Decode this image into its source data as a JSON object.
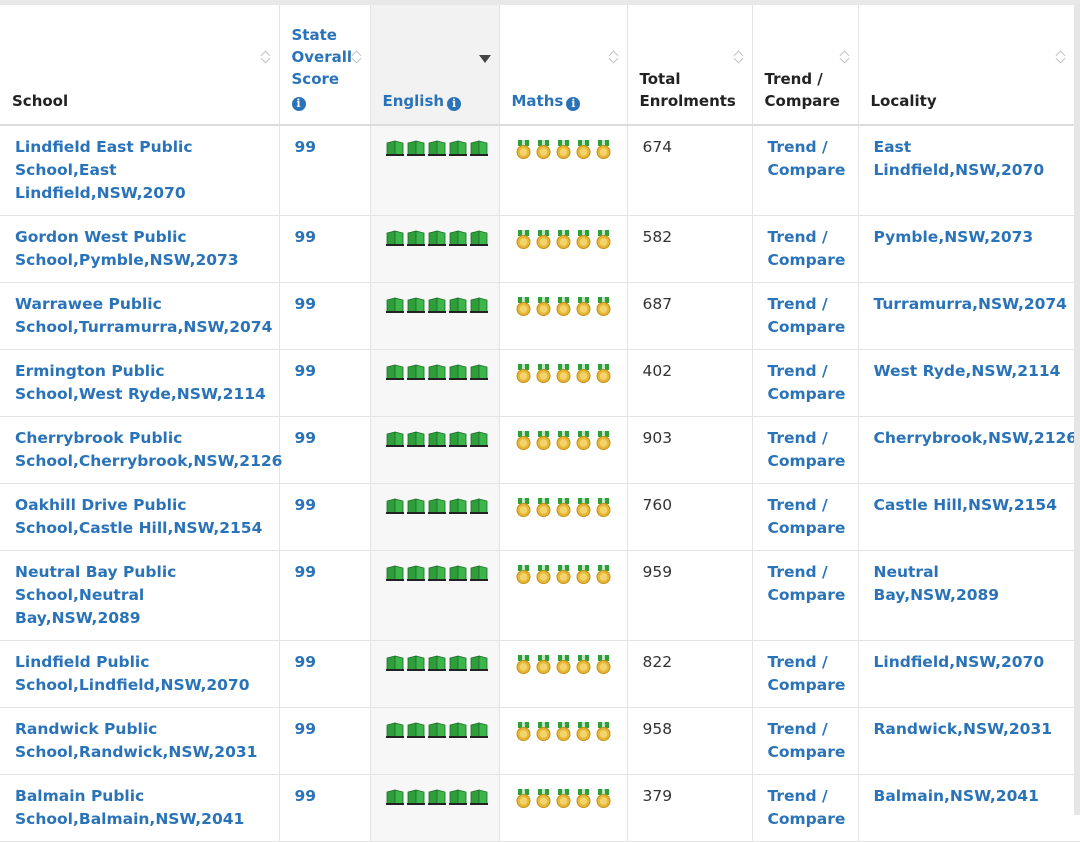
{
  "headers": {
    "school": "School",
    "score_line1": "State",
    "score_line2": "Overall",
    "score_line3": "Score",
    "english": "English",
    "maths": "Maths",
    "enrol_line1": "Total",
    "enrol_line2": "Enrolments",
    "trend_line1": "Trend /",
    "trend_line2": "Compare",
    "locality": "Locality"
  },
  "icons": {
    "info": "info-icon",
    "english_rating": "book-icon",
    "maths_rating": "medal-icon",
    "english_color": "#2e9e3a",
    "maths_color": "#e6b838"
  },
  "colors": {
    "link": "#2a73b8"
  },
  "rows": [
    {
      "school": "Lindfield East Public School,East Lindfield,NSW,2070",
      "score": "99",
      "english_rating": 5,
      "maths_rating": 5,
      "enrolments": "674",
      "trend_a": "Trend /",
      "trend_b": "Compare",
      "locality": "East Lindfield,NSW,2070"
    },
    {
      "school": "Gordon West Public School,Pymble,NSW,2073",
      "score": "99",
      "english_rating": 5,
      "maths_rating": 5,
      "enrolments": "582",
      "trend_a": "Trend /",
      "trend_b": "Compare",
      "locality": "Pymble,NSW,2073"
    },
    {
      "school": "Warrawee Public School,Turramurra,NSW,2074",
      "score": "99",
      "english_rating": 5,
      "maths_rating": 5,
      "enrolments": "687",
      "trend_a": "Trend /",
      "trend_b": "Compare",
      "locality": "Turramurra,NSW,2074"
    },
    {
      "school": "Ermington Public School,West Ryde,NSW,2114",
      "score": "99",
      "english_rating": 5,
      "maths_rating": 5,
      "enrolments": "402",
      "trend_a": "Trend /",
      "trend_b": "Compare",
      "locality": "West Ryde,NSW,2114"
    },
    {
      "school": "Cherrybrook Public School,Cherrybrook,NSW,2126",
      "score": "99",
      "english_rating": 5,
      "maths_rating": 5,
      "enrolments": "903",
      "trend_a": "Trend /",
      "trend_b": "Compare",
      "locality": "Cherrybrook,NSW,2126"
    },
    {
      "school": "Oakhill Drive Public School,Castle Hill,NSW,2154",
      "score": "99",
      "english_rating": 5,
      "maths_rating": 5,
      "enrolments": "760",
      "trend_a": "Trend /",
      "trend_b": "Compare",
      "locality": "Castle Hill,NSW,2154"
    },
    {
      "school": "Neutral Bay Public School,Neutral Bay,NSW,2089",
      "score": "99",
      "english_rating": 5,
      "maths_rating": 5,
      "enrolments": "959",
      "trend_a": "Trend /",
      "trend_b": "Compare",
      "locality": "Neutral Bay,NSW,2089"
    },
    {
      "school": "Lindfield Public School,Lindfield,NSW,2070",
      "score": "99",
      "english_rating": 5,
      "maths_rating": 5,
      "enrolments": "822",
      "trend_a": "Trend /",
      "trend_b": "Compare",
      "locality": "Lindfield,NSW,2070"
    },
    {
      "school": "Randwick Public School,Randwick,NSW,2031",
      "score": "99",
      "english_rating": 5,
      "maths_rating": 5,
      "enrolments": "958",
      "trend_a": "Trend /",
      "trend_b": "Compare",
      "locality": "Randwick,NSW,2031"
    },
    {
      "school": "Balmain Public School,Balmain,NSW,2041",
      "score": "99",
      "english_rating": 5,
      "maths_rating": 5,
      "enrolments": "379",
      "trend_a": "Trend /",
      "trend_b": "Compare",
      "locality": "Balmain,NSW,2041"
    }
  ]
}
